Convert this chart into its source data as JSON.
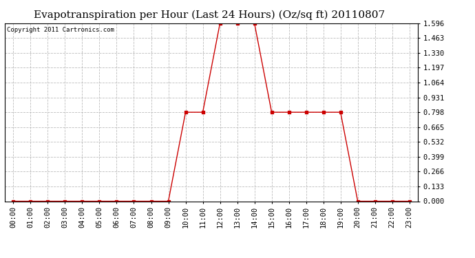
{
  "title": "Evapotranspiration per Hour (Last 24 Hours) (Oz/sq ft) 20110807",
  "copyright_text": "Copyright 2011 Cartronics.com",
  "x_labels": [
    "00:00",
    "01:00",
    "02:00",
    "03:00",
    "04:00",
    "05:00",
    "06:00",
    "07:00",
    "08:00",
    "09:00",
    "10:00",
    "11:00",
    "12:00",
    "13:00",
    "14:00",
    "15:00",
    "16:00",
    "17:00",
    "18:00",
    "19:00",
    "20:00",
    "21:00",
    "22:00",
    "23:00"
  ],
  "y_values": [
    0.0,
    0.0,
    0.0,
    0.0,
    0.0,
    0.0,
    0.0,
    0.0,
    0.0,
    0.0,
    0.798,
    0.798,
    1.596,
    1.596,
    1.596,
    0.798,
    0.798,
    0.798,
    0.798,
    0.798,
    0.0,
    0.0,
    0.0,
    0.0
  ],
  "y_ticks": [
    0.0,
    0.133,
    0.266,
    0.399,
    0.532,
    0.665,
    0.798,
    0.931,
    1.064,
    1.197,
    1.33,
    1.463,
    1.596
  ],
  "line_color": "#cc0000",
  "marker": "s",
  "marker_size": 2.5,
  "grid_color": "#bbbbbb",
  "background_color": "#ffffff",
  "title_fontsize": 11,
  "copyright_fontsize": 6.5,
  "tick_fontsize": 7.5,
  "ylim": [
    0.0,
    1.596
  ],
  "xlim": [
    -0.5,
    23.5
  ]
}
